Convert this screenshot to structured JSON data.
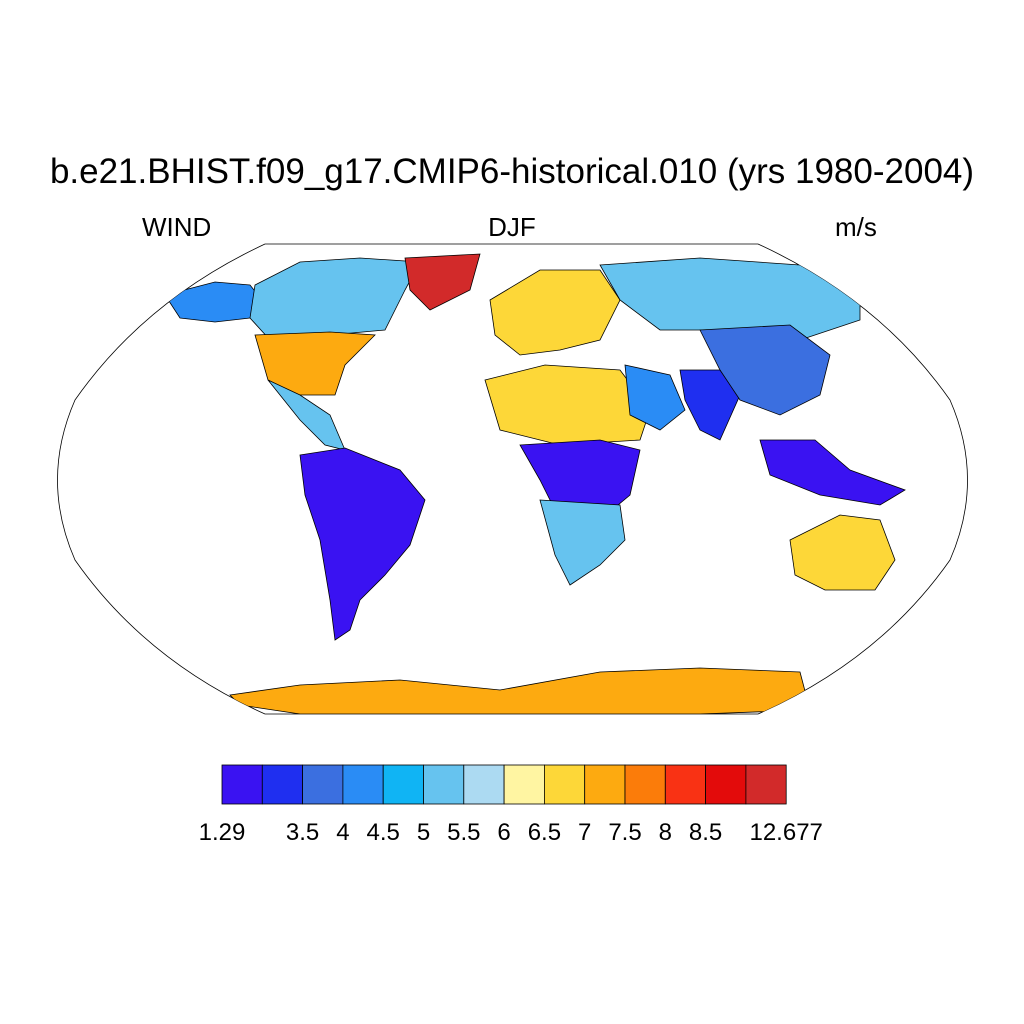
{
  "header": {
    "title": "b.e21.BHIST.f09_g17.CMIP6-historical.010 (yrs 1980-2004)",
    "left": "WIND",
    "center": "DJF",
    "right": "m/s"
  },
  "colorbar": {
    "colors": [
      "#3a12f2",
      "#1f2ff0",
      "#3b6fe0",
      "#2a8cf5",
      "#10b4f4",
      "#66c3ef",
      "#acdaf2",
      "#fff5a2",
      "#fdd738",
      "#fdaa10",
      "#fb7c0a",
      "#f93214",
      "#e30b0b",
      "#d22a2a"
    ],
    "labels": [
      "1.29",
      "3.5",
      "4",
      "4.5",
      "5",
      "5.5",
      "6",
      "6.5",
      "7",
      "7.5",
      "8",
      "8.5",
      "12.677"
    ]
  },
  "map": {
    "projection": "robinson",
    "land": [
      {
        "region": "alaska",
        "color": "#2a8cf5"
      },
      {
        "region": "canada",
        "color": "#66c3ef"
      },
      {
        "region": "greenland",
        "color": "#d22a2a"
      },
      {
        "region": "usa",
        "color": "#fdaa10"
      },
      {
        "region": "central-america",
        "color": "#66c3ef"
      },
      {
        "region": "south-america",
        "color": "#3a12f2"
      },
      {
        "region": "europe",
        "color": "#fdd738"
      },
      {
        "region": "russia",
        "color": "#66c3ef"
      },
      {
        "region": "sahara",
        "color": "#fdd738"
      },
      {
        "region": "central-africa",
        "color": "#3a12f2"
      },
      {
        "region": "southern-africa",
        "color": "#66c3ef"
      },
      {
        "region": "arabia",
        "color": "#2a8cf5"
      },
      {
        "region": "india",
        "color": "#1f2ff0"
      },
      {
        "region": "china",
        "color": "#3b6fe0"
      },
      {
        "region": "southeast-asia",
        "color": "#3a12f2"
      },
      {
        "region": "australia",
        "color": "#fdd738"
      },
      {
        "region": "antarctica",
        "color": "#fdaa10"
      }
    ]
  }
}
